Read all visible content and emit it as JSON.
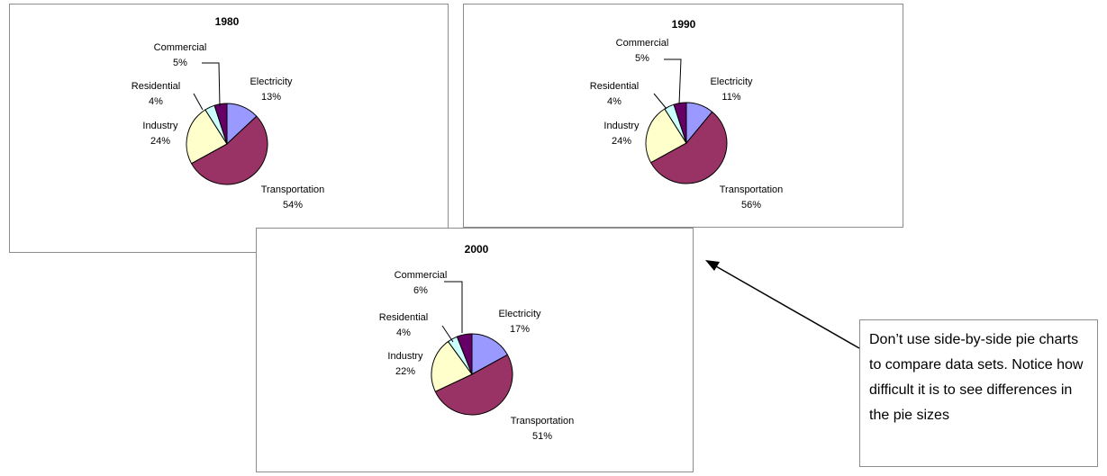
{
  "chart_data": [
    {
      "type": "pie",
      "title": "1980",
      "categories": [
        "Electricity",
        "Transportation",
        "Industry",
        "Residential",
        "Commercial"
      ],
      "values": [
        13,
        54,
        24,
        4,
        5
      ],
      "labels": [
        "13%",
        "54%",
        "24%",
        "4%",
        "5%"
      ],
      "colors": [
        "#9999ff",
        "#993366",
        "#ffffcc",
        "#ccffff",
        "#660066"
      ]
    },
    {
      "type": "pie",
      "title": "1990",
      "categories": [
        "Electricity",
        "Transportation",
        "Industry",
        "Residential",
        "Commercial"
      ],
      "values": [
        11,
        56,
        24,
        4,
        5
      ],
      "labels": [
        "11%",
        "56%",
        "24%",
        "4%",
        "5%"
      ],
      "colors": [
        "#9999ff",
        "#993366",
        "#ffffcc",
        "#ccffff",
        "#660066"
      ]
    },
    {
      "type": "pie",
      "title": "2000",
      "categories": [
        "Electricity",
        "Transportation",
        "Industry",
        "Residential",
        "Commercial"
      ],
      "values": [
        17,
        51,
        22,
        4,
        6
      ],
      "labels": [
        "17%",
        "51%",
        "22%",
        "4%",
        "6%"
      ],
      "colors": [
        "#9999ff",
        "#993366",
        "#ffffcc",
        "#ccffff",
        "#660066"
      ]
    }
  ],
  "note": {
    "text": "Don’t use side-by-side pie charts to compare data sets.  Notice how difficult it is to see differences in the pie sizes"
  }
}
